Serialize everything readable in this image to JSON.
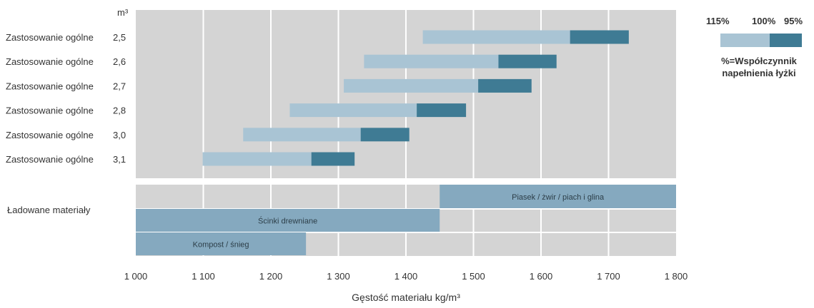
{
  "chart_data": {
    "type": "bar",
    "unit_label": "m³",
    "xlabel": "Gęstość materiału kg/m³",
    "xlim": [
      1000,
      1800
    ],
    "x_ticks": [
      {
        "value": 1000,
        "label": "1 000"
      },
      {
        "value": 1100,
        "label": "1 100"
      },
      {
        "value": 1200,
        "label": "1 200"
      },
      {
        "value": 1300,
        "label": "1 300"
      },
      {
        "value": 1400,
        "label": "1 400"
      },
      {
        "value": 1500,
        "label": "1 500"
      },
      {
        "value": 1600,
        "label": "1 600"
      },
      {
        "value": 1700,
        "label": "1 700"
      },
      {
        "value": 1800,
        "label": "1 800"
      }
    ],
    "grid": true,
    "buckets": [
      {
        "name": "Zastosowanie ogólne",
        "volume": "2,5",
        "start_115": 1425,
        "mid_100": 1643,
        "end_95": 1730
      },
      {
        "name": "Zastosowanie ogólne",
        "volume": "2,6",
        "start_115": 1338,
        "mid_100": 1537,
        "end_95": 1623
      },
      {
        "name": "Zastosowanie ogólne",
        "volume": "2,7",
        "start_115": 1308,
        "mid_100": 1507,
        "end_95": 1586
      },
      {
        "name": "Zastosowanie ogólne",
        "volume": "2,8",
        "start_115": 1228,
        "mid_100": 1416,
        "end_95": 1489
      },
      {
        "name": "Zastosowanie ogólne",
        "volume": "3,0",
        "start_115": 1159,
        "mid_100": 1333,
        "end_95": 1405
      },
      {
        "name": "Zastosowanie ogólne",
        "volume": "3,1",
        "start_115": 1099,
        "mid_100": 1260,
        "end_95": 1324
      }
    ],
    "materials_group_label": "Ładowane materiały",
    "materials": [
      {
        "label": "Piasek / żwir / piach i glina",
        "from": 1450,
        "to": 1800
      },
      {
        "label": "Ścinki drewniane",
        "from": 1000,
        "to": 1450
      },
      {
        "label": "Kompost / śnieg",
        "from": 1000,
        "to": 1252
      }
    ],
    "legend": {
      "labels": [
        "115%",
        "100%",
        "95%"
      ],
      "caption_line1": "%=Współczynnik",
      "caption_line2": "napełnienia łyżki"
    },
    "colors": {
      "light_bar": "#a9c4d4",
      "dark_bar": "#3f7b94",
      "material_bar": "#85a9bf",
      "background": "#d4d4d4",
      "grid": "#ffffff"
    }
  }
}
